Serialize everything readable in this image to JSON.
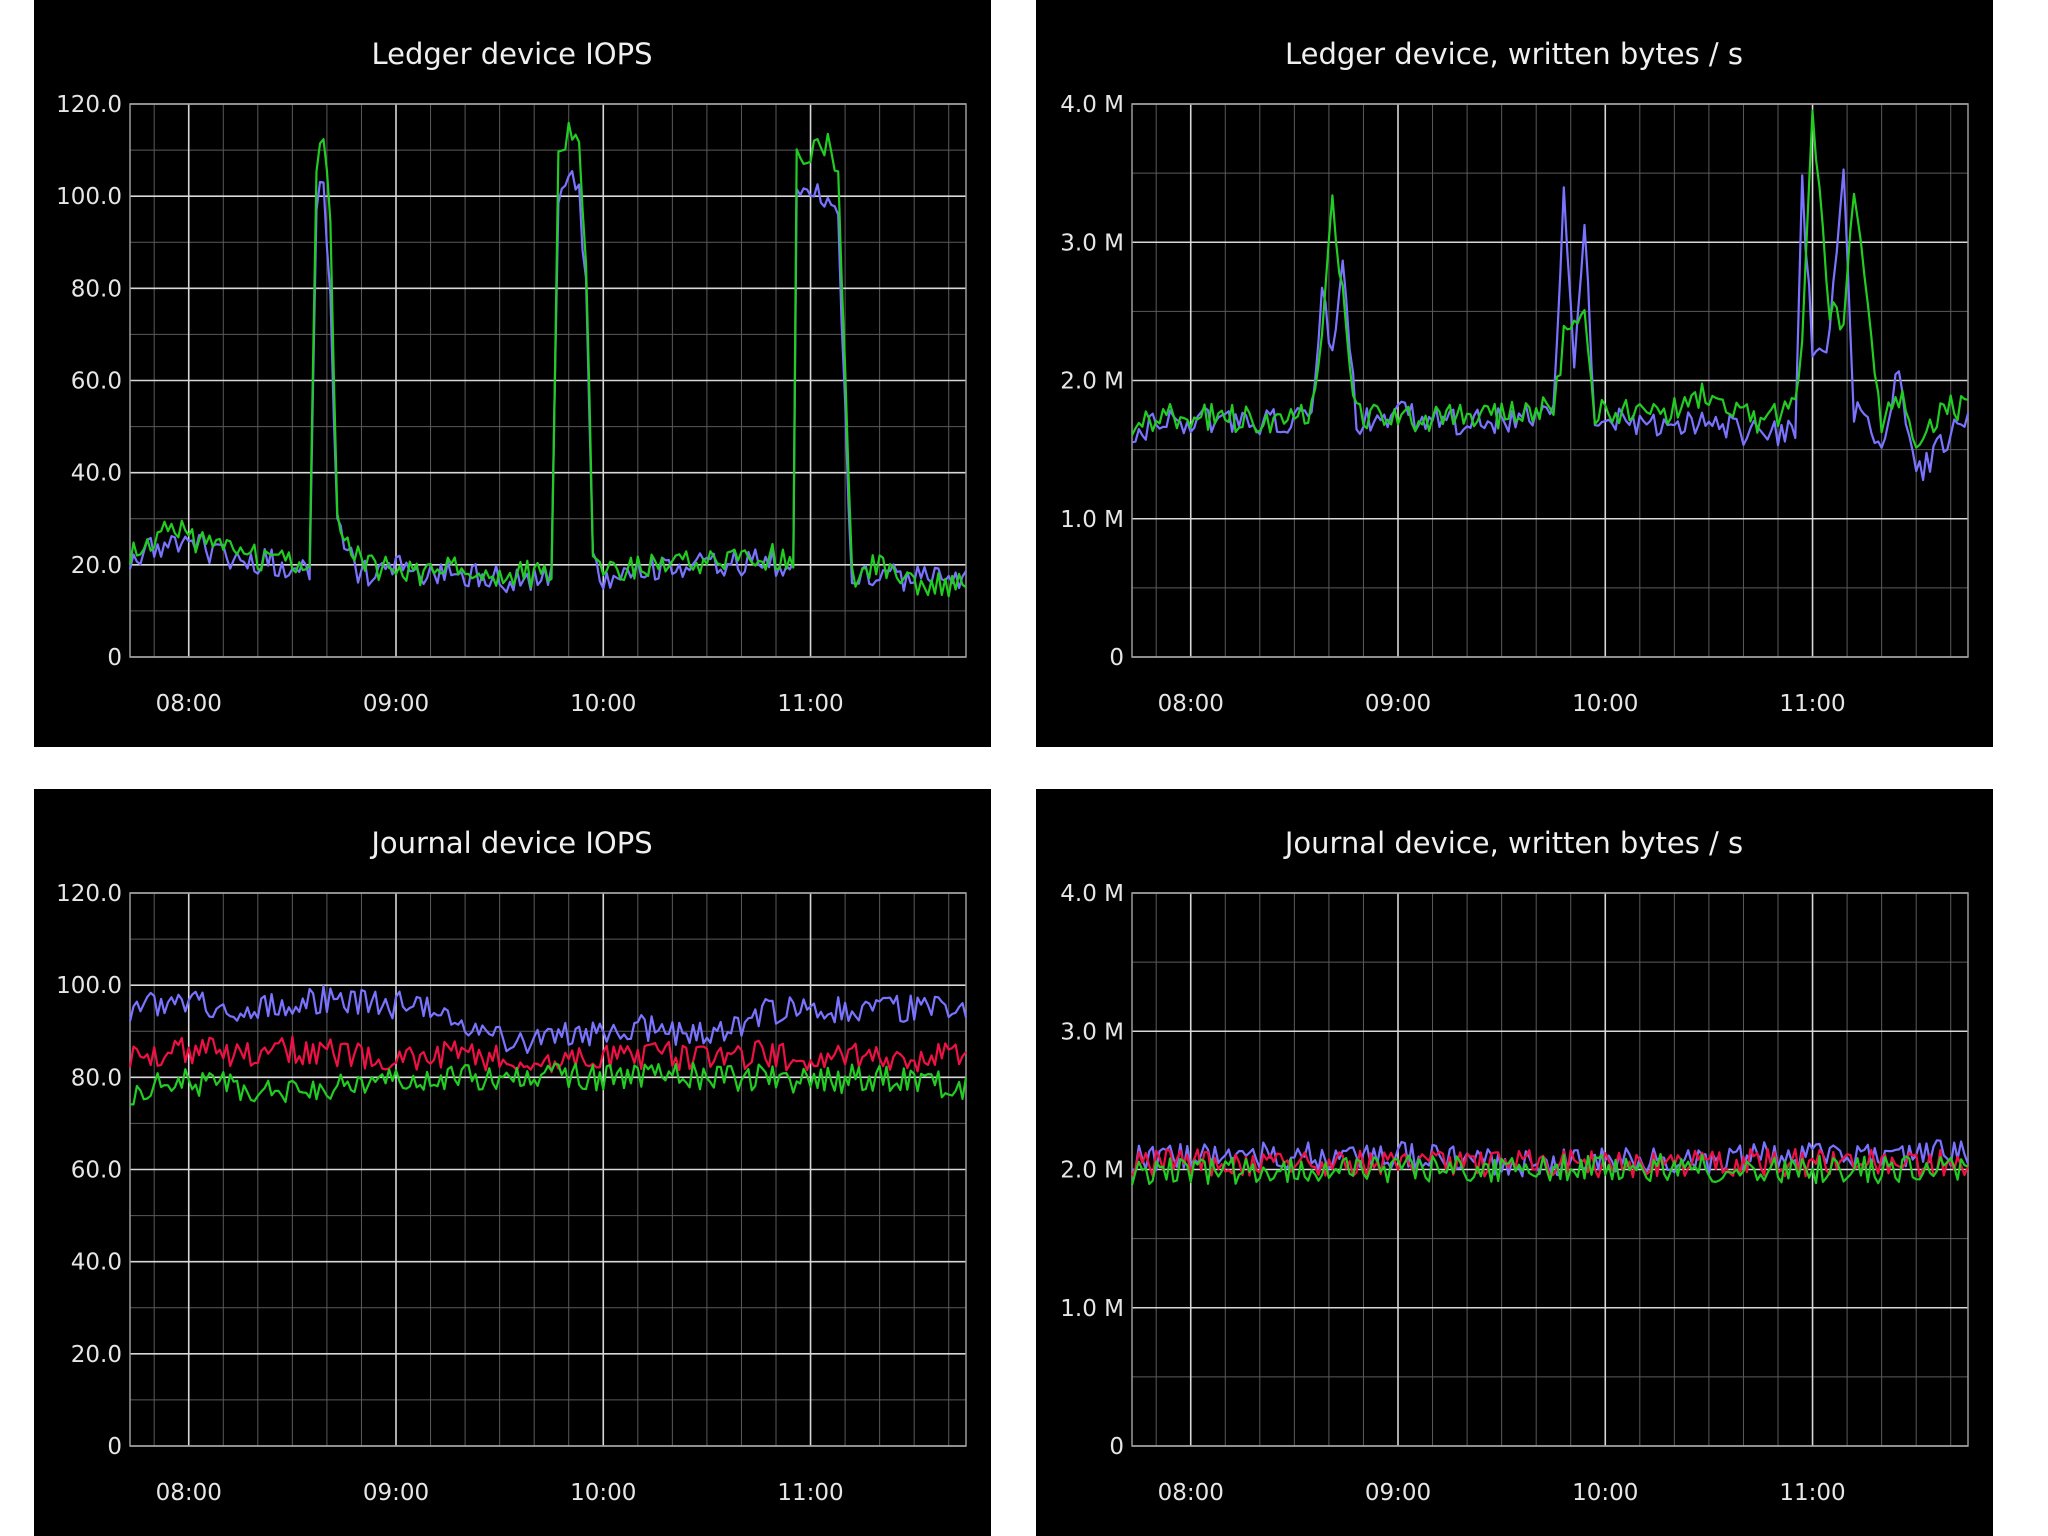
{
  "chart_data": [
    {
      "id": "ledger-iops",
      "type": "line",
      "title": "Ledger device IOPS",
      "xlabel": "",
      "ylabel": "",
      "x_range": [
        "07:43",
        "11:45"
      ],
      "ylim": [
        0,
        120
      ],
      "yticks": [
        0,
        20,
        40,
        60,
        80,
        100,
        120
      ],
      "ytick_labels": [
        "0",
        "20.0",
        "40.0",
        "60.0",
        "80.0",
        "100.0",
        "120.0"
      ],
      "xticks": [
        "08:00",
        "09:00",
        "10:00",
        "11:00"
      ],
      "grid": true,
      "colors": {
        "background": "#000000",
        "grid": "#d8d8d8"
      },
      "series": [
        {
          "color": "#7a73ff",
          "points": [
            [
              "07:43",
              22
            ],
            [
              "08:00",
              25
            ],
            [
              "08:10",
              22
            ],
            [
              "08:20",
              21
            ],
            [
              "08:30",
              20
            ],
            [
              "08:35",
              18
            ],
            [
              "08:37",
              100
            ],
            [
              "08:39",
              104
            ],
            [
              "08:41",
              80
            ],
            [
              "08:43",
              28
            ],
            [
              "08:46",
              22
            ],
            [
              "08:50",
              18
            ],
            [
              "09:00",
              19
            ],
            [
              "09:15",
              18
            ],
            [
              "09:30",
              17
            ],
            [
              "09:45",
              17
            ],
            [
              "09:47",
              100
            ],
            [
              "09:50",
              105
            ],
            [
              "09:53",
              102
            ],
            [
              "09:55",
              80
            ],
            [
              "09:57",
              20
            ],
            [
              "10:00",
              17
            ],
            [
              "10:15",
              19
            ],
            [
              "10:30",
              20
            ],
            [
              "10:45",
              21
            ],
            [
              "10:55",
              20
            ],
            [
              "10:56",
              100
            ],
            [
              "11:00",
              102
            ],
            [
              "11:05",
              100
            ],
            [
              "11:08",
              95
            ],
            [
              "11:10",
              55
            ],
            [
              "11:12",
              16
            ],
            [
              "11:20",
              18
            ],
            [
              "11:30",
              17
            ],
            [
              "11:40",
              16
            ],
            [
              "11:45",
              17
            ]
          ]
        },
        {
          "color": "#22cc22",
          "points": [
            [
              "07:43",
              23
            ],
            [
              "07:56",
              28
            ],
            [
              "08:05",
              24
            ],
            [
              "08:15",
              22
            ],
            [
              "08:25",
              21
            ],
            [
              "08:35",
              20
            ],
            [
              "08:37",
              108
            ],
            [
              "08:39",
              115
            ],
            [
              "08:41",
              95
            ],
            [
              "08:43",
              32
            ],
            [
              "08:48",
              22
            ],
            [
              "09:00",
              18
            ],
            [
              "09:15",
              19
            ],
            [
              "09:30",
              18
            ],
            [
              "09:45",
              18
            ],
            [
              "09:47",
              108
            ],
            [
              "09:50",
              114
            ],
            [
              "09:53",
              110
            ],
            [
              "09:55",
              85
            ],
            [
              "09:57",
              22
            ],
            [
              "10:00",
              18
            ],
            [
              "10:15",
              20
            ],
            [
              "10:30",
              21
            ],
            [
              "10:45",
              22
            ],
            [
              "10:55",
              21
            ],
            [
              "10:56",
              108
            ],
            [
              "11:00",
              110
            ],
            [
              "11:05",
              112
            ],
            [
              "11:08",
              105
            ],
            [
              "11:10",
              60
            ],
            [
              "11:12",
              18
            ],
            [
              "11:20",
              20
            ],
            [
              "11:30",
              16
            ],
            [
              "11:40",
              15
            ],
            [
              "11:45",
              18
            ]
          ]
        }
      ]
    },
    {
      "id": "ledger-bytes",
      "type": "line",
      "title": "Ledger device, written bytes / s",
      "xlabel": "",
      "ylabel": "",
      "x_range": [
        "07:43",
        "11:45"
      ],
      "ylim": [
        0,
        4
      ],
      "yticks": [
        0,
        1,
        2,
        3,
        4
      ],
      "ytick_labels": [
        "0",
        "1.0 M",
        "2.0 M",
        "3.0 M",
        "4.0 M"
      ],
      "xticks": [
        "08:00",
        "09:00",
        "10:00",
        "11:00"
      ],
      "grid": true,
      "colors": {
        "background": "#000000",
        "grid": "#d8d8d8"
      },
      "series": [
        {
          "color": "#7a73ff",
          "points": [
            [
              "07:43",
              1.65
            ],
            [
              "08:00",
              1.72
            ],
            [
              "08:15",
              1.7
            ],
            [
              "08:30",
              1.72
            ],
            [
              "08:35",
              1.75
            ],
            [
              "08:38",
              2.7
            ],
            [
              "08:41",
              2.2
            ],
            [
              "08:44",
              2.8
            ],
            [
              "08:48",
              1.7
            ],
            [
              "09:00",
              1.75
            ],
            [
              "09:15",
              1.7
            ],
            [
              "09:30",
              1.72
            ],
            [
              "09:45",
              1.75
            ],
            [
              "09:48",
              3.3
            ],
            [
              "09:51",
              2.1
            ],
            [
              "09:54",
              3.2
            ],
            [
              "09:57",
              1.6
            ],
            [
              "10:00",
              1.75
            ],
            [
              "10:15",
              1.65
            ],
            [
              "10:30",
              1.7
            ],
            [
              "10:45",
              1.6
            ],
            [
              "10:55",
              1.65
            ],
            [
              "10:57",
              3.4
            ],
            [
              "11:00",
              2.2
            ],
            [
              "11:05",
              2.3
            ],
            [
              "11:09",
              3.6
            ],
            [
              "11:12",
              1.8
            ],
            [
              "11:20",
              1.5
            ],
            [
              "11:25",
              2.1
            ],
            [
              "11:30",
              1.3
            ],
            [
              "11:40",
              1.6
            ],
            [
              "11:45",
              1.75
            ]
          ]
        },
        {
          "color": "#22cc22",
          "points": [
            [
              "07:43",
              1.7
            ],
            [
              "08:00",
              1.75
            ],
            [
              "08:15",
              1.72
            ],
            [
              "08:30",
              1.7
            ],
            [
              "08:35",
              1.8
            ],
            [
              "08:38",
              2.4
            ],
            [
              "08:41",
              3.3
            ],
            [
              "08:44",
              2.6
            ],
            [
              "08:48",
              1.75
            ],
            [
              "09:00",
              1.7
            ],
            [
              "09:15",
              1.75
            ],
            [
              "09:30",
              1.75
            ],
            [
              "09:45",
              1.8
            ],
            [
              "09:48",
              2.3
            ],
            [
              "09:51",
              2.5
            ],
            [
              "09:54",
              2.5
            ],
            [
              "09:57",
              1.7
            ],
            [
              "10:00",
              1.8
            ],
            [
              "10:15",
              1.75
            ],
            [
              "10:30",
              1.9
            ],
            [
              "10:45",
              1.7
            ],
            [
              "10:55",
              1.8
            ],
            [
              "10:57",
              2.2
            ],
            [
              "11:00",
              4.0
            ],
            [
              "11:05",
              2.5
            ],
            [
              "11:09",
              2.4
            ],
            [
              "11:12",
              3.4
            ],
            [
              "11:20",
              1.7
            ],
            [
              "11:25",
              1.9
            ],
            [
              "11:30",
              1.6
            ],
            [
              "11:40",
              1.8
            ],
            [
              "11:45",
              1.8
            ]
          ]
        }
      ]
    },
    {
      "id": "journal-iops",
      "type": "line",
      "title": "Journal device IOPS",
      "xlabel": "",
      "ylabel": "",
      "x_range": [
        "07:43",
        "11:45"
      ],
      "ylim": [
        0,
        120
      ],
      "yticks": [
        0,
        20,
        40,
        60,
        80,
        100,
        120
      ],
      "ytick_labels": [
        "0",
        "20.0",
        "40.0",
        "60.0",
        "80.0",
        "100.0",
        "120.0"
      ],
      "xticks": [
        "08:00",
        "09:00",
        "10:00",
        "11:00"
      ],
      "grid": true,
      "colors": {
        "background": "#000000",
        "grid": "#d8d8d8"
      },
      "series": [
        {
          "color": "#7a73ff",
          "points": [
            [
              "07:43",
              95
            ],
            [
              "07:55",
              97
            ],
            [
              "08:10",
              95
            ],
            [
              "08:25",
              96
            ],
            [
              "08:40",
              97
            ],
            [
              "08:55",
              96
            ],
            [
              "09:10",
              95
            ],
            [
              "09:20",
              90
            ],
            [
              "09:35",
              88
            ],
            [
              "09:50",
              89
            ],
            [
              "10:05",
              91
            ],
            [
              "10:20",
              90
            ],
            [
              "10:35",
              90
            ],
            [
              "10:45",
              94
            ],
            [
              "11:00",
              95
            ],
            [
              "11:15",
              94
            ],
            [
              "11:30",
              95
            ],
            [
              "11:45",
              94
            ]
          ]
        },
        {
          "color": "#ee1144",
          "points": [
            [
              "07:43",
              85
            ],
            [
              "08:00",
              86
            ],
            [
              "08:15",
              85
            ],
            [
              "08:30",
              86
            ],
            [
              "08:45",
              85
            ],
            [
              "09:00",
              84
            ],
            [
              "09:15",
              85
            ],
            [
              "09:30",
              84
            ],
            [
              "09:45",
              83
            ],
            [
              "10:00",
              84
            ],
            [
              "10:15",
              85
            ],
            [
              "10:30",
              84
            ],
            [
              "10:45",
              85
            ],
            [
              "11:00",
              84
            ],
            [
              "11:15",
              85
            ],
            [
              "11:30",
              84
            ],
            [
              "11:45",
              85
            ]
          ]
        },
        {
          "color": "#22cc22",
          "points": [
            [
              "07:43",
              77
            ],
            [
              "08:00",
              79
            ],
            [
              "08:15",
              78
            ],
            [
              "08:30",
              77
            ],
            [
              "08:45",
              78
            ],
            [
              "09:00",
              79
            ],
            [
              "09:15",
              80
            ],
            [
              "09:30",
              80
            ],
            [
              "09:45",
              81
            ],
            [
              "10:00",
              80
            ],
            [
              "10:15",
              81
            ],
            [
              "10:30",
              80
            ],
            [
              "10:45",
              80
            ],
            [
              "11:00",
              79
            ],
            [
              "11:15",
              80
            ],
            [
              "11:30",
              79
            ],
            [
              "11:45",
              78
            ]
          ]
        }
      ]
    },
    {
      "id": "journal-bytes",
      "type": "line",
      "title": "Journal device, written bytes / s",
      "xlabel": "",
      "ylabel": "",
      "x_range": [
        "07:43",
        "11:45"
      ],
      "ylim": [
        0,
        4
      ],
      "yticks": [
        0,
        1,
        2,
        3,
        4
      ],
      "ytick_labels": [
        "0",
        "1.0 M",
        "2.0 M",
        "3.0 M",
        "4.0 M"
      ],
      "xticks": [
        "08:00",
        "09:00",
        "10:00",
        "11:00"
      ],
      "grid": true,
      "colors": {
        "background": "#000000",
        "grid": "#d8d8d8"
      },
      "series": [
        {
          "color": "#7a73ff",
          "points": [
            [
              "07:43",
              2.09
            ],
            [
              "08:00",
              2.1
            ],
            [
              "08:20",
              2.1
            ],
            [
              "08:40",
              2.1
            ],
            [
              "09:00",
              2.1
            ],
            [
              "09:20",
              2.09
            ],
            [
              "09:30",
              2.05
            ],
            [
              "09:50",
              2.05
            ],
            [
              "10:10",
              2.06
            ],
            [
              "10:30",
              2.06
            ],
            [
              "10:45",
              2.1
            ],
            [
              "11:00",
              2.1
            ],
            [
              "11:20",
              2.11
            ],
            [
              "11:45",
              2.12
            ]
          ]
        },
        {
          "color": "#ee1144",
          "points": [
            [
              "07:43",
              2.05
            ],
            [
              "08:00",
              2.05
            ],
            [
              "08:30",
              2.05
            ],
            [
              "09:00",
              2.04
            ],
            [
              "09:30",
              2.04
            ],
            [
              "10:00",
              2.04
            ],
            [
              "10:30",
              2.05
            ],
            [
              "11:00",
              2.05
            ],
            [
              "11:30",
              2.05
            ],
            [
              "11:45",
              2.05
            ]
          ]
        },
        {
          "color": "#22cc22",
          "points": [
            [
              "07:43",
              1.98
            ],
            [
              "08:00",
              1.99
            ],
            [
              "08:30",
              1.99
            ],
            [
              "09:00",
              2.0
            ],
            [
              "09:30",
              2.01
            ],
            [
              "10:00",
              2.02
            ],
            [
              "10:30",
              2.01
            ],
            [
              "11:00",
              2.0
            ],
            [
              "11:30",
              2.0
            ],
            [
              "11:45",
              2.0
            ]
          ]
        }
      ]
    }
  ]
}
